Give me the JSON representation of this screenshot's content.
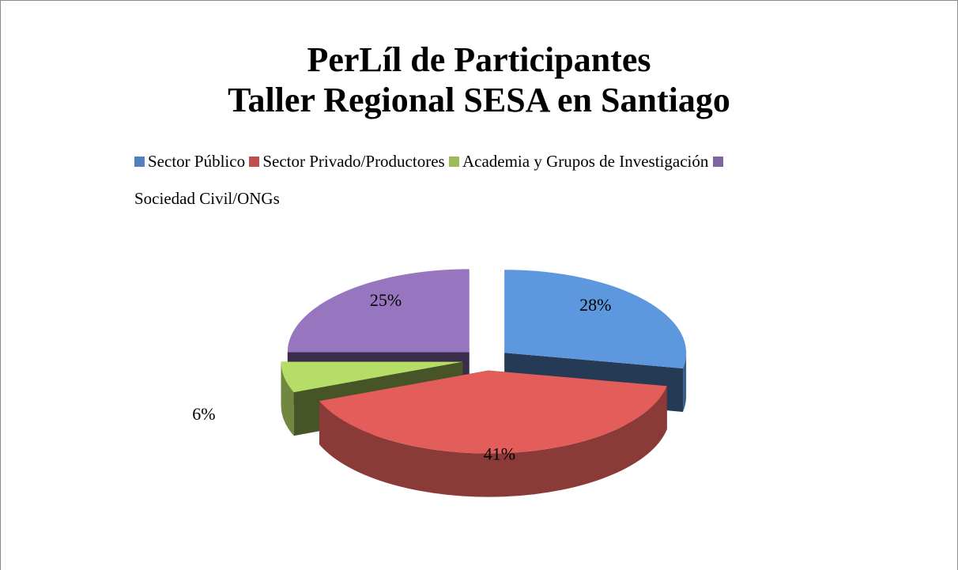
{
  "chart_data": {
    "type": "pie",
    "title": [
      "PerLíl de Participantes",
      "Taller Regional SESA en Santiago"
    ],
    "categories": [
      "Sector Público",
      "Sector Privado/Productores",
      "Academia y Grupos de Investigación",
      "Sociedad Civil/ONGs"
    ],
    "values": [
      28,
      41,
      6,
      25
    ],
    "value_labels": [
      "28%",
      "41%",
      "6%",
      "25%"
    ],
    "colors": [
      "#4f81bd",
      "#c0504d",
      "#9bbb59",
      "#8064a2"
    ],
    "legend": "top"
  }
}
